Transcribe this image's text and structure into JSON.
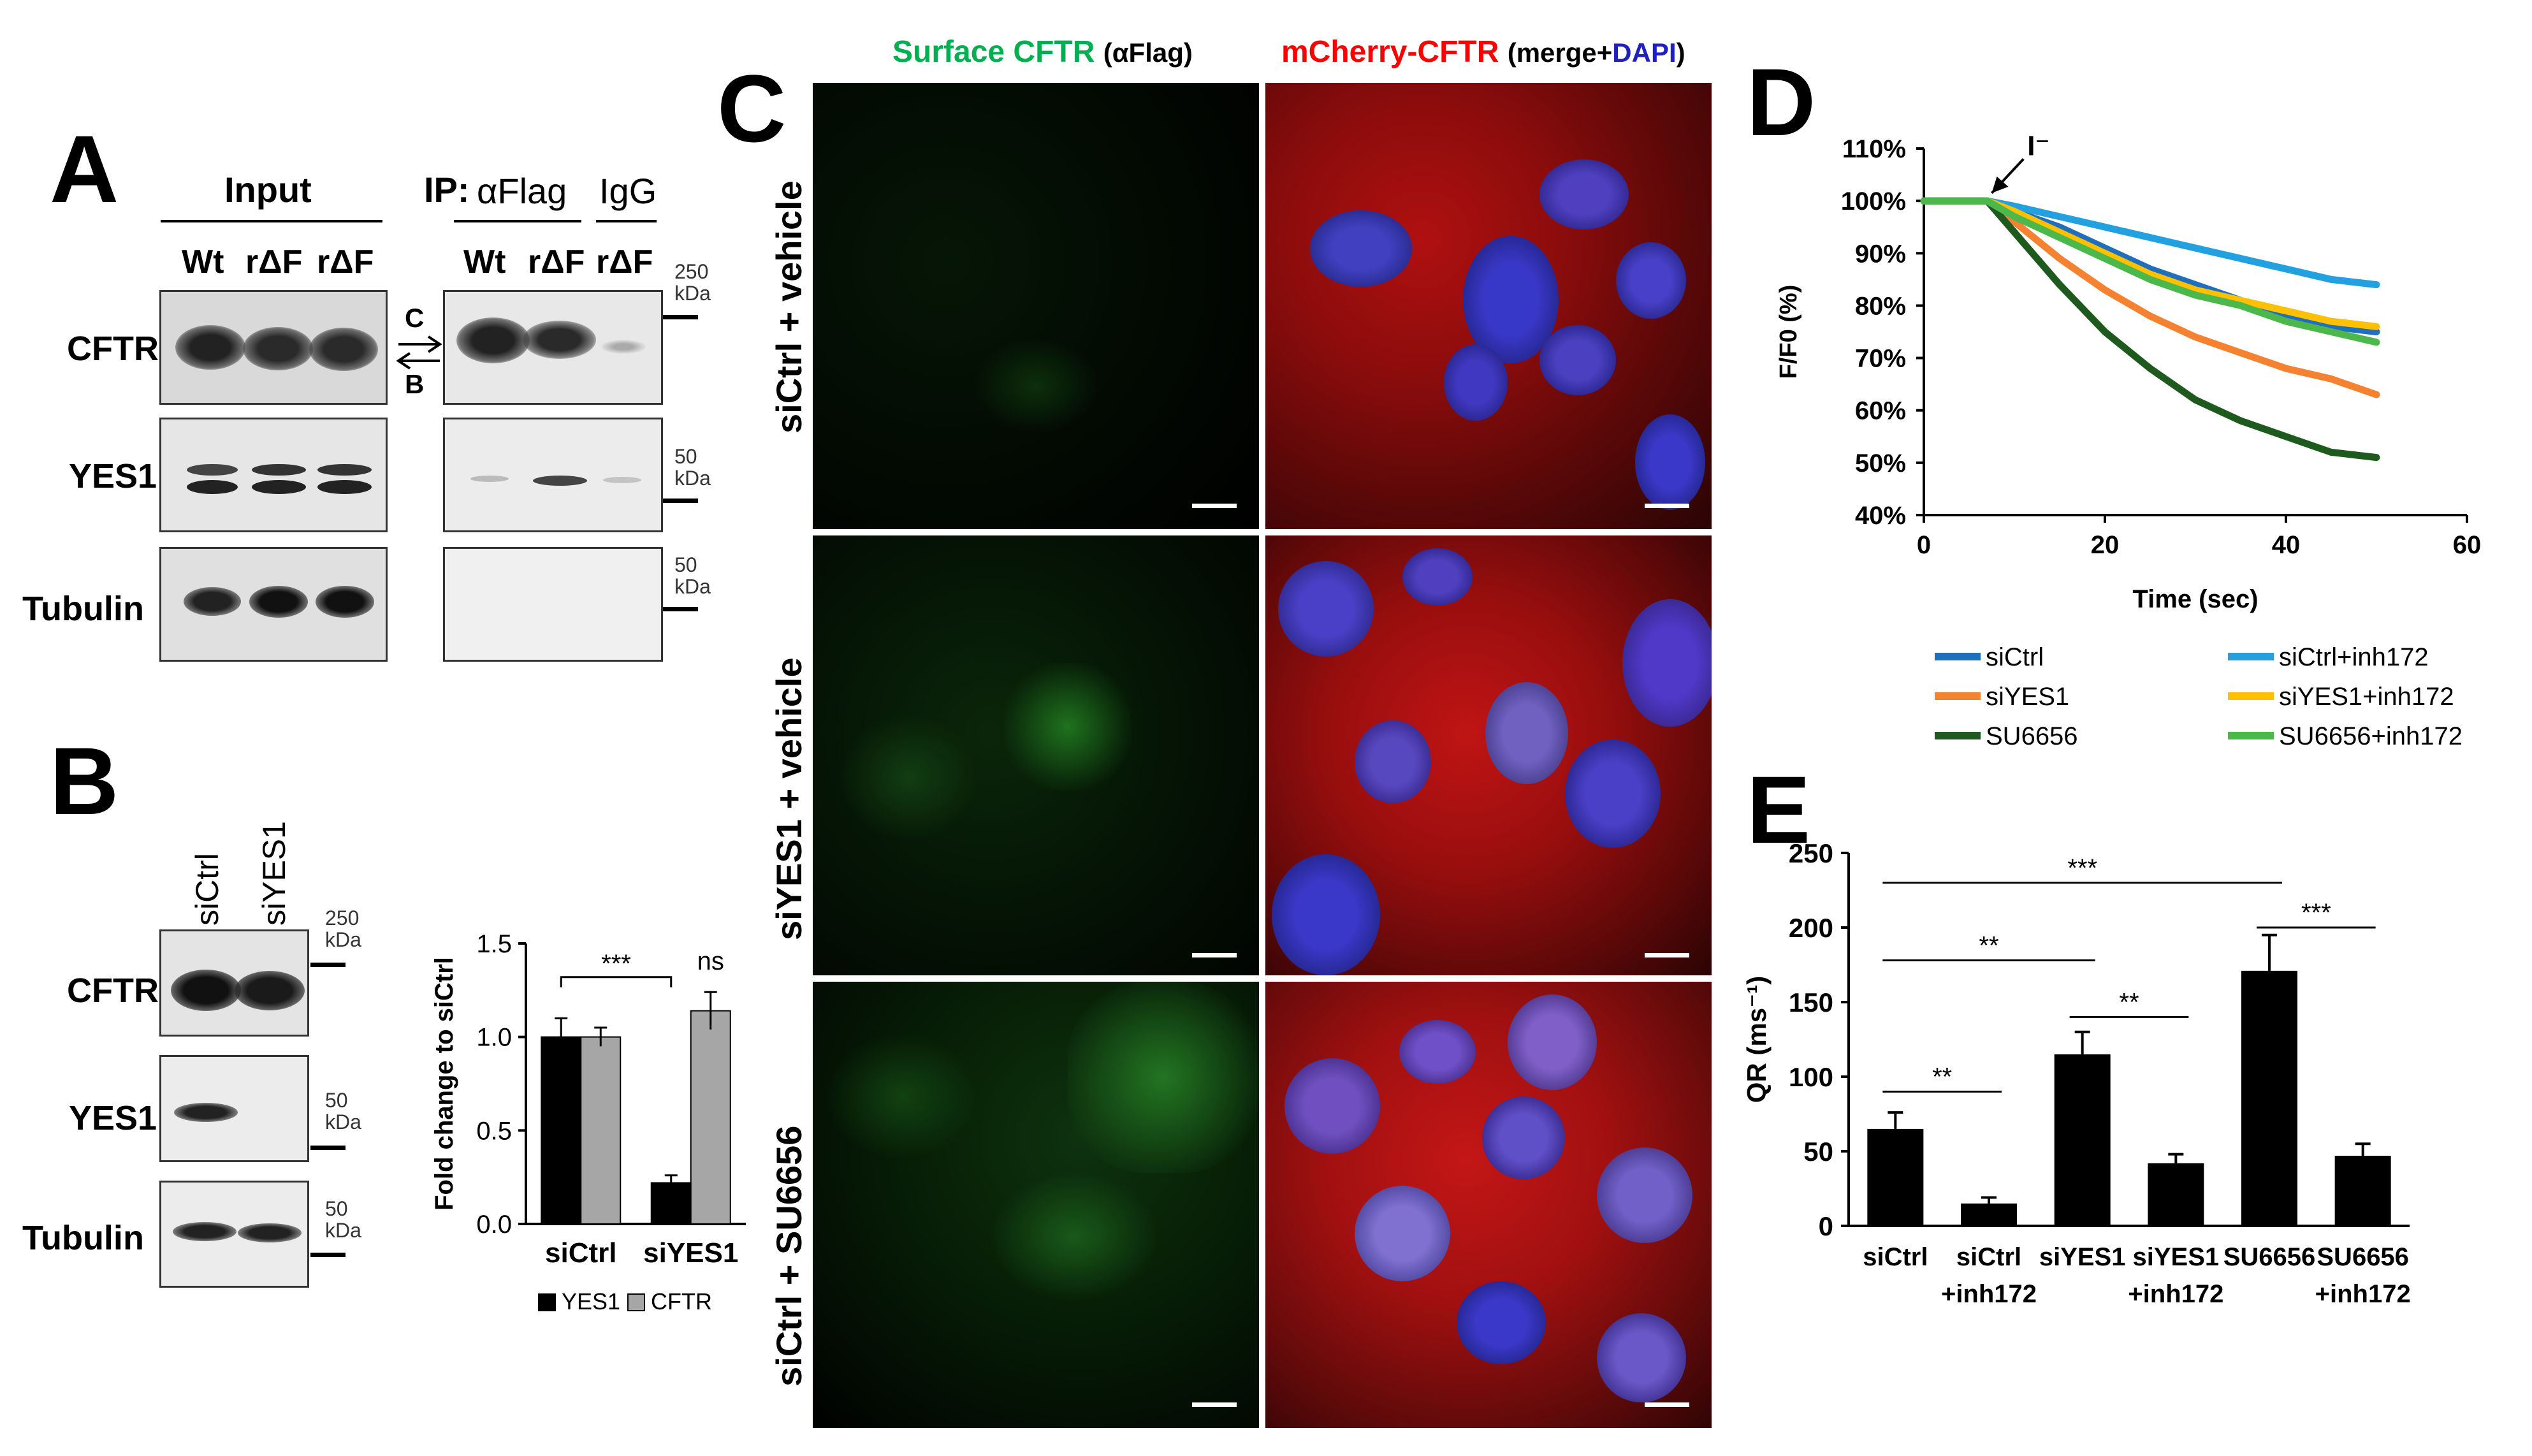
{
  "panel_labels": {
    "a": "A",
    "b": "B",
    "c": "C",
    "d": "D",
    "e": "E"
  },
  "panelA": {
    "input_header": "Input",
    "ip_prefix": "IP:",
    "ip_flag": "αFlag",
    "ip_igg": "IgG",
    "lanes_input": [
      "Wt",
      "rΔF",
      "rΔF"
    ],
    "lanes_ip": [
      "Wt",
      "rΔF",
      "rΔF"
    ],
    "rows": [
      "CFTR",
      "YES1",
      "Tubulin"
    ],
    "band_c": "C",
    "band_b": "B",
    "markers": [
      {
        "value": "250",
        "unit": "kDa"
      },
      {
        "value": "50",
        "unit": "kDa"
      },
      {
        "value": "50",
        "unit": "kDa"
      }
    ]
  },
  "panelB": {
    "lanes": [
      "siCtrl",
      "siYES1"
    ],
    "rows": [
      "CFTR",
      "YES1",
      "Tubulin"
    ],
    "markers": [
      {
        "value": "250",
        "unit": "kDa"
      },
      {
        "value": "50",
        "unit": "kDa"
      },
      {
        "value": "50",
        "unit": "kDa"
      }
    ],
    "significance": [
      "***",
      "ns"
    ]
  },
  "panelC": {
    "col1_title": "Surface CFTR",
    "col1_sub": "(αFlag)",
    "col2_title": "mCherry-CFTR",
    "col2_sub_a": "(merge+",
    "col2_sub_b": "DAPI",
    "col2_sub_c": ")",
    "conditions": [
      "siCtrl + vehicle",
      "siYES1 + vehicle",
      "siCtrl + SU6656"
    ],
    "colors": {
      "green": "#00b050",
      "red": "#ff0000",
      "blue": "#2020c0"
    }
  },
  "panelD": {
    "arrow_label": "I⁻"
  },
  "panelE": {
    "significance": [
      "***",
      "**",
      "**",
      "**",
      "***"
    ],
    "x_labels_line1": [
      "siCtrl",
      "siCtrl",
      "siYES1",
      "siYES1",
      "SU6656",
      "SU6656"
    ],
    "x_labels_line2": [
      "",
      "+inh172",
      "",
      "+inh172",
      "",
      "+inh172"
    ]
  },
  "chart_data": [
    {
      "id": "panelB-chart",
      "type": "bar",
      "categories": [
        "siCtrl",
        "siYES1"
      ],
      "series": [
        {
          "name": "YES1",
          "values": [
            1.0,
            0.22
          ],
          "errors": [
            0.1,
            0.04
          ],
          "color": "#000000"
        },
        {
          "name": "CFTR",
          "values": [
            1.0,
            1.14
          ],
          "errors": [
            0.05,
            0.1
          ],
          "color": "#a6a6a6"
        }
      ],
      "ylabel": "Fold change to siCtrl",
      "ylim": [
        0,
        1.5
      ],
      "yticks": [
        "0.0",
        "0.5",
        "1.0",
        "1.5"
      ],
      "legend": "bottom"
    },
    {
      "id": "panelD-chart",
      "type": "line",
      "xlabel": "Time (sec)",
      "ylabel": "F/F0 (%)",
      "xlim": [
        0,
        60
      ],
      "ylim": [
        40,
        110
      ],
      "xticks": [
        "0",
        "20",
        "40",
        "60"
      ],
      "yticks": [
        "40%",
        "50%",
        "60%",
        "70%",
        "80%",
        "90%",
        "100%",
        "110%"
      ],
      "legend": "bottom",
      "series": [
        {
          "name": "siCtrl",
          "color": "#1f6fbf",
          "x": [
            0,
            7,
            10,
            15,
            20,
            25,
            30,
            35,
            40,
            45,
            50
          ],
          "y": [
            100,
            100,
            98,
            95,
            91,
            87,
            84,
            81,
            78,
            76,
            75
          ]
        },
        {
          "name": "siCtrl+inh172",
          "color": "#22a0e0",
          "x": [
            0,
            7,
            10,
            15,
            20,
            25,
            30,
            35,
            40,
            45,
            50
          ],
          "y": [
            100,
            100,
            99,
            97,
            95,
            93,
            91,
            89,
            87,
            85,
            84
          ]
        },
        {
          "name": "siYES1",
          "color": "#f58231",
          "x": [
            0,
            7,
            10,
            15,
            20,
            25,
            30,
            35,
            40,
            45,
            50
          ],
          "y": [
            100,
            100,
            96,
            89,
            83,
            78,
            74,
            71,
            68,
            66,
            63
          ]
        },
        {
          "name": "siYES1+inh172",
          "color": "#ffc000",
          "x": [
            0,
            7,
            10,
            15,
            20,
            25,
            30,
            35,
            40,
            45,
            50
          ],
          "y": [
            100,
            100,
            98,
            94,
            90,
            86,
            83,
            81,
            79,
            77,
            76
          ]
        },
        {
          "name": "SU6656",
          "color": "#1e5a1e",
          "x": [
            0,
            7,
            10,
            15,
            20,
            25,
            30,
            35,
            40,
            45,
            50
          ],
          "y": [
            100,
            100,
            94,
            84,
            75,
            68,
            62,
            58,
            55,
            52,
            51
          ]
        },
        {
          "name": "SU6656+inh172",
          "color": "#4cb84c",
          "x": [
            0,
            7,
            10,
            15,
            20,
            25,
            30,
            35,
            40,
            45,
            50
          ],
          "y": [
            100,
            100,
            97,
            93,
            89,
            85,
            82,
            80,
            77,
            75,
            73
          ]
        }
      ]
    },
    {
      "id": "panelE-chart",
      "type": "bar",
      "categories": [
        "siCtrl",
        "siCtrl +inh172",
        "siYES1",
        "siYES1 +inh172",
        "SU6656",
        "SU6656 +inh172"
      ],
      "values": [
        65,
        15,
        115,
        42,
        171,
        47
      ],
      "errors": [
        11,
        4,
        15,
        6,
        24,
        8
      ],
      "ylabel": "QR (ms⁻¹)",
      "ylim": [
        0,
        250
      ],
      "yticks": [
        "0",
        "50",
        "100",
        "150",
        "200",
        "250"
      ]
    }
  ]
}
